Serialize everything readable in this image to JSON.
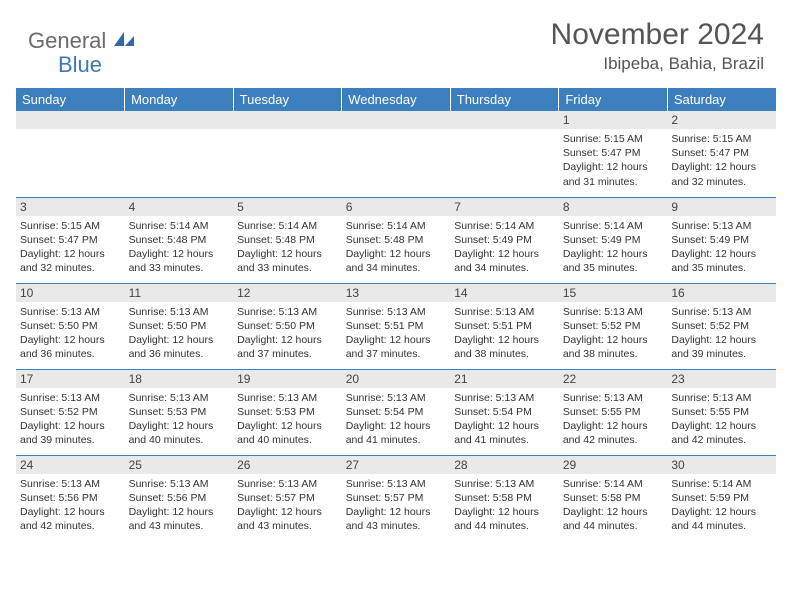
{
  "logo": {
    "word1": "General",
    "word2": "Blue"
  },
  "title": "November 2024",
  "location": "Ibipeba, Bahia, Brazil",
  "colors": {
    "header_bg": "#3b7fbf",
    "header_text": "#ffffff",
    "daynum_bg": "#e9e9e9",
    "row_divider": "#3b7fbf",
    "body_text": "#333333",
    "title_text": "#555555",
    "logo_gray": "#6a6a6a",
    "logo_blue": "#3e79b4"
  },
  "weekdays": [
    "Sunday",
    "Monday",
    "Tuesday",
    "Wednesday",
    "Thursday",
    "Friday",
    "Saturday"
  ],
  "weeks": [
    [
      null,
      null,
      null,
      null,
      null,
      {
        "n": "1",
        "sr": "5:15 AM",
        "ss": "5:47 PM",
        "dl": "12 hours and 31 minutes."
      },
      {
        "n": "2",
        "sr": "5:15 AM",
        "ss": "5:47 PM",
        "dl": "12 hours and 32 minutes."
      }
    ],
    [
      {
        "n": "3",
        "sr": "5:15 AM",
        "ss": "5:47 PM",
        "dl": "12 hours and 32 minutes."
      },
      {
        "n": "4",
        "sr": "5:14 AM",
        "ss": "5:48 PM",
        "dl": "12 hours and 33 minutes."
      },
      {
        "n": "5",
        "sr": "5:14 AM",
        "ss": "5:48 PM",
        "dl": "12 hours and 33 minutes."
      },
      {
        "n": "6",
        "sr": "5:14 AM",
        "ss": "5:48 PM",
        "dl": "12 hours and 34 minutes."
      },
      {
        "n": "7",
        "sr": "5:14 AM",
        "ss": "5:49 PM",
        "dl": "12 hours and 34 minutes."
      },
      {
        "n": "8",
        "sr": "5:14 AM",
        "ss": "5:49 PM",
        "dl": "12 hours and 35 minutes."
      },
      {
        "n": "9",
        "sr": "5:13 AM",
        "ss": "5:49 PM",
        "dl": "12 hours and 35 minutes."
      }
    ],
    [
      {
        "n": "10",
        "sr": "5:13 AM",
        "ss": "5:50 PM",
        "dl": "12 hours and 36 minutes."
      },
      {
        "n": "11",
        "sr": "5:13 AM",
        "ss": "5:50 PM",
        "dl": "12 hours and 36 minutes."
      },
      {
        "n": "12",
        "sr": "5:13 AM",
        "ss": "5:50 PM",
        "dl": "12 hours and 37 minutes."
      },
      {
        "n": "13",
        "sr": "5:13 AM",
        "ss": "5:51 PM",
        "dl": "12 hours and 37 minutes."
      },
      {
        "n": "14",
        "sr": "5:13 AM",
        "ss": "5:51 PM",
        "dl": "12 hours and 38 minutes."
      },
      {
        "n": "15",
        "sr": "5:13 AM",
        "ss": "5:52 PM",
        "dl": "12 hours and 38 minutes."
      },
      {
        "n": "16",
        "sr": "5:13 AM",
        "ss": "5:52 PM",
        "dl": "12 hours and 39 minutes."
      }
    ],
    [
      {
        "n": "17",
        "sr": "5:13 AM",
        "ss": "5:52 PM",
        "dl": "12 hours and 39 minutes."
      },
      {
        "n": "18",
        "sr": "5:13 AM",
        "ss": "5:53 PM",
        "dl": "12 hours and 40 minutes."
      },
      {
        "n": "19",
        "sr": "5:13 AM",
        "ss": "5:53 PM",
        "dl": "12 hours and 40 minutes."
      },
      {
        "n": "20",
        "sr": "5:13 AM",
        "ss": "5:54 PM",
        "dl": "12 hours and 41 minutes."
      },
      {
        "n": "21",
        "sr": "5:13 AM",
        "ss": "5:54 PM",
        "dl": "12 hours and 41 minutes."
      },
      {
        "n": "22",
        "sr": "5:13 AM",
        "ss": "5:55 PM",
        "dl": "12 hours and 42 minutes."
      },
      {
        "n": "23",
        "sr": "5:13 AM",
        "ss": "5:55 PM",
        "dl": "12 hours and 42 minutes."
      }
    ],
    [
      {
        "n": "24",
        "sr": "5:13 AM",
        "ss": "5:56 PM",
        "dl": "12 hours and 42 minutes."
      },
      {
        "n": "25",
        "sr": "5:13 AM",
        "ss": "5:56 PM",
        "dl": "12 hours and 43 minutes."
      },
      {
        "n": "26",
        "sr": "5:13 AM",
        "ss": "5:57 PM",
        "dl": "12 hours and 43 minutes."
      },
      {
        "n": "27",
        "sr": "5:13 AM",
        "ss": "5:57 PM",
        "dl": "12 hours and 43 minutes."
      },
      {
        "n": "28",
        "sr": "5:13 AM",
        "ss": "5:58 PM",
        "dl": "12 hours and 44 minutes."
      },
      {
        "n": "29",
        "sr": "5:14 AM",
        "ss": "5:58 PM",
        "dl": "12 hours and 44 minutes."
      },
      {
        "n": "30",
        "sr": "5:14 AM",
        "ss": "5:59 PM",
        "dl": "12 hours and 44 minutes."
      }
    ]
  ],
  "labels": {
    "sunrise": "Sunrise:",
    "sunset": "Sunset:",
    "daylight": "Daylight:"
  }
}
